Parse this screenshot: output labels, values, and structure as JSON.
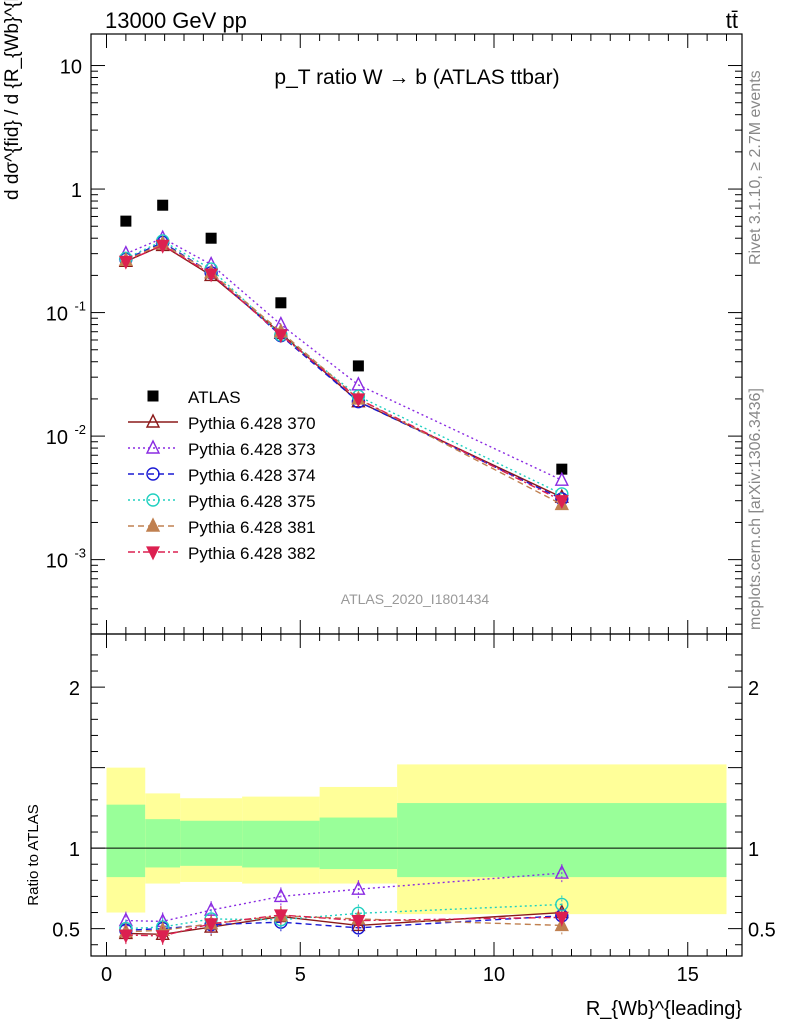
{
  "header": {
    "left": "13000 GeV pp",
    "right": "tt̄",
    "plot_title": "p_T ratio W → b (ATLAS ttbar)"
  },
  "side_text": {
    "top": "Rivet 3.1.10, ≥ 2.7M events",
    "bottom": "mcplots.cern.ch [arXiv:1306.3436]"
  },
  "watermark": "ATLAS_2020_I1801434",
  "chart_data": [
    {
      "type": "line",
      "panel": "main",
      "yscale": "log",
      "ylim": [
        0.00025,
        18
      ],
      "xlim": [
        -0.4,
        16.4
      ],
      "ylabel": "d dσ^{fid} / d {R_{Wb}^{leading}} [pb]",
      "y_tick_labels": [
        "10^{-3}",
        "10^{-2}",
        "10^{-1}",
        "1",
        "10"
      ],
      "x": [
        0.5,
        1.45,
        2.7,
        4.5,
        6.5,
        11.75
      ],
      "legend_position": "left, below curves",
      "series": [
        {
          "name": "ATLAS",
          "marker": "filled-square",
          "color": "#000000",
          "values": [
            0.55,
            0.74,
            0.4,
            0.12,
            0.037,
            0.0054
          ]
        },
        {
          "name": "Pythia 6.428 370",
          "marker": "open-triangle-up",
          "line": "solid",
          "color": "#8b1a1a",
          "values": [
            0.26,
            0.35,
            0.2,
            0.068,
            0.019,
            0.0032
          ]
        },
        {
          "name": "Pythia 6.428 373",
          "marker": "open-triangle-up",
          "line": "dotted",
          "color": "#8a2be2",
          "values": [
            0.3,
            0.4,
            0.245,
            0.08,
            0.026,
            0.0044
          ]
        },
        {
          "name": "Pythia 6.428 374",
          "marker": "open-circle",
          "line": "dashed",
          "color": "#1a1ad4",
          "values": [
            0.27,
            0.37,
            0.21,
            0.065,
            0.019,
            0.0031
          ]
        },
        {
          "name": "Pythia 6.428 375",
          "marker": "open-circle",
          "line": "dotted",
          "color": "#20d0c0",
          "values": [
            0.275,
            0.38,
            0.225,
            0.066,
            0.021,
            0.0034
          ]
        },
        {
          "name": "Pythia 6.428 381",
          "marker": "filled-triangle-up",
          "line": "dashed",
          "color": "#c08050",
          "values": [
            0.265,
            0.36,
            0.21,
            0.07,
            0.02,
            0.0028
          ]
        },
        {
          "name": "Pythia 6.428 382",
          "marker": "filled-triangle-down",
          "line": "dashdot",
          "color": "#dc2050",
          "values": [
            0.26,
            0.35,
            0.205,
            0.066,
            0.02,
            0.003
          ]
        }
      ]
    },
    {
      "type": "line",
      "panel": "ratio",
      "ylim": [
        0.33,
        2.33
      ],
      "xlim": [
        -0.4,
        16.4
      ],
      "ylabel": "Ratio to ATLAS",
      "xlabel": "R_{Wb}^{leading}",
      "x_tick_labels": [
        "0",
        "5",
        "10",
        "15"
      ],
      "y_tick_labels": [
        "0.5",
        "1",
        "2"
      ],
      "x": [
        0.5,
        1.45,
        2.7,
        4.5,
        6.5,
        11.75
      ],
      "bands": [
        {
          "x0": 0,
          "x1": 1,
          "inner": [
            0.82,
            1.27
          ],
          "outer": [
            0.6,
            1.5
          ]
        },
        {
          "x0": 1,
          "x1": 1.9,
          "inner": [
            0.88,
            1.18
          ],
          "outer": [
            0.78,
            1.34
          ]
        },
        {
          "x0": 1.9,
          "x1": 3.5,
          "inner": [
            0.89,
            1.17
          ],
          "outer": [
            0.79,
            1.31
          ]
        },
        {
          "x0": 3.5,
          "x1": 5.5,
          "inner": [
            0.88,
            1.17
          ],
          "outer": [
            0.78,
            1.32
          ]
        },
        {
          "x0": 5.5,
          "x1": 7.5,
          "inner": [
            0.87,
            1.19
          ],
          "outer": [
            0.78,
            1.38
          ]
        },
        {
          "x0": 7.5,
          "x1": 16,
          "inner": [
            0.82,
            1.28
          ],
          "outer": [
            0.59,
            1.52
          ]
        }
      ],
      "series": [
        {
          "name": "Pythia 6.428 370",
          "values": [
            0.47,
            0.465,
            0.51,
            0.575,
            0.52,
            0.6
          ]
        },
        {
          "name": "Pythia 6.428 373",
          "values": [
            0.55,
            0.545,
            0.615,
            0.7,
            0.745,
            0.845
          ]
        },
        {
          "name": "Pythia 6.428 374",
          "values": [
            0.49,
            0.5,
            0.525,
            0.54,
            0.505,
            0.58
          ]
        },
        {
          "name": "Pythia 6.428 375",
          "values": [
            0.5,
            0.51,
            0.56,
            0.555,
            0.595,
            0.65
          ]
        },
        {
          "name": "Pythia 6.428 381",
          "values": [
            0.48,
            0.49,
            0.53,
            0.58,
            0.56,
            0.52
          ]
        },
        {
          "name": "Pythia 6.428 382",
          "values": [
            0.46,
            0.455,
            0.53,
            0.585,
            0.55,
            0.57
          ]
        }
      ]
    }
  ]
}
